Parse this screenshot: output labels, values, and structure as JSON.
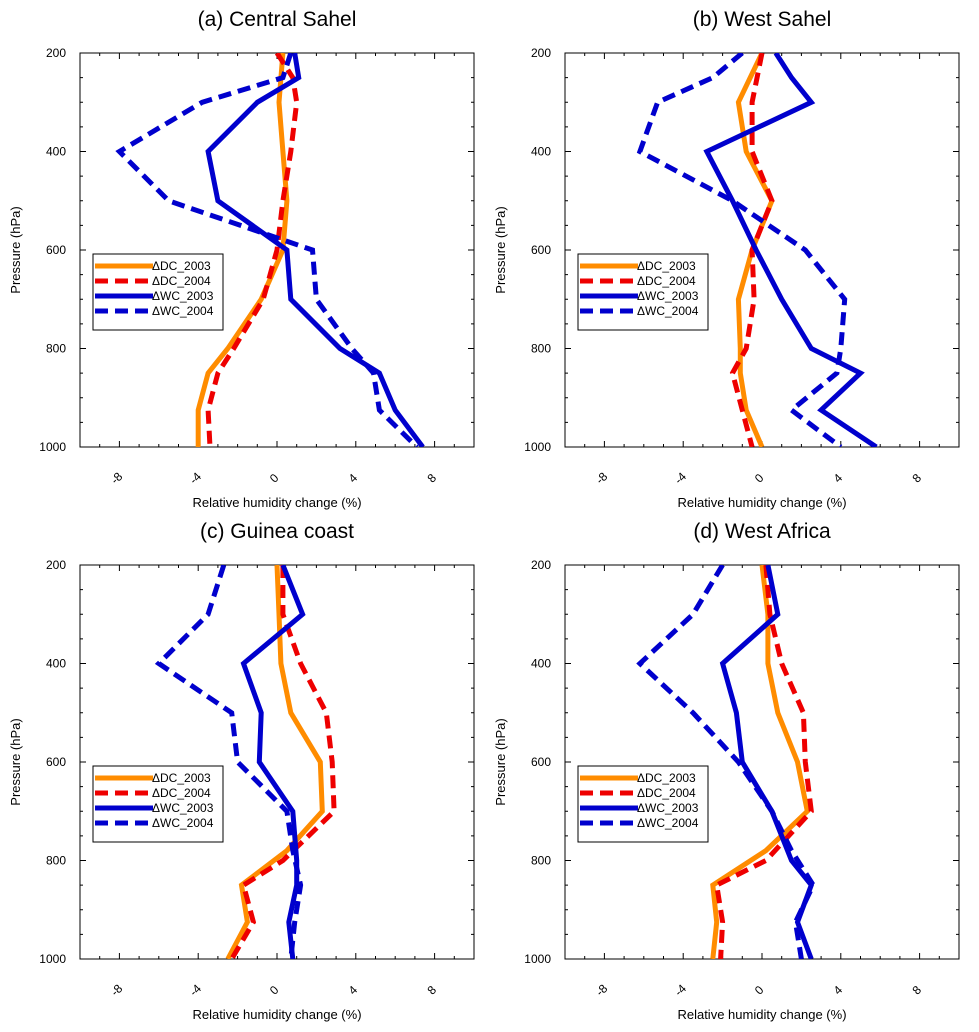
{
  "chart_data": [
    {
      "type": "line",
      "title": "(a) Central Sahel",
      "xlabel": "Relative humidity change (%)",
      "ylabel": "Pressure (hPa)",
      "xlim": [
        -10,
        10
      ],
      "ylim": [
        1000,
        200
      ],
      "x_ticks": [
        "-8",
        "-4",
        "0",
        "4",
        "8"
      ],
      "y_ticks": [
        "200",
        "400",
        "600",
        "800",
        "1000"
      ],
      "grid": false,
      "legend_position": "center-left",
      "series": [
        {
          "name": "ΔDC_2003",
          "color": "#FF8C00",
          "style": "solid",
          "points": [
            [
              0.3,
              200
            ],
            [
              0.1,
              300
            ],
            [
              0.3,
              400
            ],
            [
              0.5,
              500
            ],
            [
              0.3,
              600
            ],
            [
              -0.8,
              700
            ],
            [
              -2.5,
              800
            ],
            [
              -3.5,
              850
            ],
            [
              -4,
              925
            ],
            [
              -4,
              1000
            ]
          ]
        },
        {
          "name": "ΔDC_2004",
          "color": "#EE0000",
          "style": "dashed",
          "points": [
            [
              0,
              200
            ],
            [
              0.8,
              250
            ],
            [
              1,
              300
            ],
            [
              0.7,
              400
            ],
            [
              0.3,
              500
            ],
            [
              0,
              600
            ],
            [
              -0.7,
              700
            ],
            [
              -2.2,
              800
            ],
            [
              -3,
              850
            ],
            [
              -3.5,
              925
            ],
            [
              -3.4,
              1000
            ]
          ]
        },
        {
          "name": "ΔWC_2003",
          "color": "#0000CD",
          "style": "solid",
          "points": [
            [
              0.9,
              200
            ],
            [
              1.1,
              250
            ],
            [
              -1,
              300
            ],
            [
              -3.5,
              400
            ],
            [
              -3,
              500
            ],
            [
              0.5,
              600
            ],
            [
              0.7,
              700
            ],
            [
              3.2,
              800
            ],
            [
              5.2,
              850
            ],
            [
              6,
              925
            ],
            [
              7.4,
              1000
            ]
          ]
        },
        {
          "name": "ΔWC_2004",
          "color": "#0000CD",
          "style": "dashed",
          "points": [
            [
              0.7,
              200
            ],
            [
              0.3,
              250
            ],
            [
              -3.8,
              300
            ],
            [
              -8,
              400
            ],
            [
              -5.5,
              500
            ],
            [
              1.8,
              600
            ],
            [
              2,
              700
            ],
            [
              3.8,
              800
            ],
            [
              4.9,
              850
            ],
            [
              5.2,
              925
            ],
            [
              7.1,
              1000
            ]
          ]
        }
      ]
    },
    {
      "type": "line",
      "title": "(b) West Sahel",
      "xlabel": "Relative humidity change (%)",
      "ylabel": "Pressure (hPa)",
      "xlim": [
        -10,
        10
      ],
      "ylim": [
        1000,
        200
      ],
      "x_ticks": [
        "-8",
        "-4",
        "0",
        "4",
        "8"
      ],
      "y_ticks": [
        "200",
        "400",
        "600",
        "800",
        "1000"
      ],
      "grid": false,
      "legend_position": "center-left",
      "series": [
        {
          "name": "ΔDC_2003",
          "color": "#FF8C00",
          "style": "solid",
          "points": [
            [
              0,
              200
            ],
            [
              -1.2,
              300
            ],
            [
              -0.8,
              400
            ],
            [
              0.5,
              500
            ],
            [
              -0.5,
              600
            ],
            [
              -1.2,
              700
            ],
            [
              -1.1,
              800
            ],
            [
              -1.1,
              850
            ],
            [
              -0.8,
              925
            ],
            [
              0,
              1000
            ]
          ]
        },
        {
          "name": "ΔDC_2004",
          "color": "#EE0000",
          "style": "dashed",
          "points": [
            [
              0,
              200
            ],
            [
              -0.5,
              300
            ],
            [
              -0.5,
              400
            ],
            [
              0.5,
              500
            ],
            [
              -0.5,
              600
            ],
            [
              -0.4,
              700
            ],
            [
              -0.8,
              800
            ],
            [
              -1.5,
              850
            ],
            [
              -1,
              925
            ],
            [
              -0.5,
              1000
            ]
          ]
        },
        {
          "name": "ΔWC_2003",
          "color": "#0000CD",
          "style": "solid",
          "points": [
            [
              0.7,
              200
            ],
            [
              1.5,
              250
            ],
            [
              2.5,
              300
            ],
            [
              -2.8,
              400
            ],
            [
              -1.5,
              500
            ],
            [
              -0.3,
              600
            ],
            [
              1,
              700
            ],
            [
              2.5,
              800
            ],
            [
              5,
              850
            ],
            [
              3,
              925
            ],
            [
              5.8,
              1000
            ]
          ]
        },
        {
          "name": "ΔWC_2004",
          "color": "#0000CD",
          "style": "dashed",
          "points": [
            [
              -1,
              200
            ],
            [
              -2.5,
              250
            ],
            [
              -5.3,
              300
            ],
            [
              -6.2,
              400
            ],
            [
              -1.5,
              500
            ],
            [
              2.2,
              600
            ],
            [
              4.2,
              700
            ],
            [
              4,
              800
            ],
            [
              3.8,
              850
            ],
            [
              1.5,
              925
            ],
            [
              4,
              1000
            ]
          ]
        }
      ]
    },
    {
      "type": "line",
      "title": "(c) Guinea coast",
      "xlabel": "Relative humidity change (%)",
      "ylabel": "Pressure (hPa)",
      "xlim": [
        -10,
        10
      ],
      "ylim": [
        1000,
        200
      ],
      "x_ticks": [
        "-8",
        "-4",
        "0",
        "4",
        "8"
      ],
      "y_ticks": [
        "200",
        "400",
        "600",
        "800",
        "1000"
      ],
      "grid": false,
      "legend_position": "center-left",
      "series": [
        {
          "name": "ΔDC_2003",
          "color": "#FF8C00",
          "style": "solid",
          "points": [
            [
              0,
              200
            ],
            [
              0.1,
              300
            ],
            [
              0.2,
              400
            ],
            [
              0.7,
              500
            ],
            [
              2.2,
              600
            ],
            [
              2.3,
              700
            ],
            [
              0.5,
              780
            ],
            [
              -1.8,
              850
            ],
            [
              -1.5,
              925
            ],
            [
              -2.5,
              1000
            ]
          ]
        },
        {
          "name": "ΔDC_2004",
          "color": "#EE0000",
          "style": "dashed",
          "points": [
            [
              0.3,
              200
            ],
            [
              0.3,
              300
            ],
            [
              1.2,
              400
            ],
            [
              2.5,
              500
            ],
            [
              2.8,
              600
            ],
            [
              2.9,
              700
            ],
            [
              0.3,
              800
            ],
            [
              -1.7,
              850
            ],
            [
              -1.2,
              925
            ],
            [
              -2.3,
              1000
            ]
          ]
        },
        {
          "name": "ΔWC_2003",
          "color": "#0000CD",
          "style": "solid",
          "points": [
            [
              0.3,
              200
            ],
            [
              1.3,
              300
            ],
            [
              -1.7,
              400
            ],
            [
              -0.8,
              500
            ],
            [
              -0.9,
              600
            ],
            [
              0.8,
              700
            ],
            [
              1,
              800
            ],
            [
              1,
              850
            ],
            [
              0.6,
              925
            ],
            [
              0.8,
              1000
            ]
          ]
        },
        {
          "name": "ΔWC_2004",
          "color": "#0000CD",
          "style": "dashed",
          "points": [
            [
              -2.7,
              200
            ],
            [
              -3.5,
              300
            ],
            [
              -6,
              400
            ],
            [
              -2.3,
              500
            ],
            [
              -2,
              600
            ],
            [
              0.5,
              700
            ],
            [
              0.8,
              780
            ],
            [
              1.2,
              850
            ],
            [
              0.9,
              925
            ],
            [
              0.7,
              1000
            ]
          ]
        }
      ]
    },
    {
      "type": "line",
      "title": "(d) West Africa",
      "xlabel": "Relative humidity change (%)",
      "ylabel": "Pressure (hPa)",
      "xlim": [
        -10,
        10
      ],
      "ylim": [
        1000,
        200
      ],
      "x_ticks": [
        "-8",
        "-4",
        "0",
        "4",
        "8"
      ],
      "y_ticks": [
        "200",
        "400",
        "600",
        "800",
        "1000"
      ],
      "grid": false,
      "legend_position": "center-left",
      "series": [
        {
          "name": "ΔDC_2003",
          "color": "#FF8C00",
          "style": "solid",
          "points": [
            [
              0,
              200
            ],
            [
              0.3,
              300
            ],
            [
              0.3,
              400
            ],
            [
              0.8,
              500
            ],
            [
              1.8,
              600
            ],
            [
              2.3,
              700
            ],
            [
              0.2,
              780
            ],
            [
              -2.5,
              850
            ],
            [
              -2.3,
              925
            ],
            [
              -2.5,
              1000
            ]
          ]
        },
        {
          "name": "ΔDC_2004",
          "color": "#EE0000",
          "style": "dashed",
          "points": [
            [
              0.2,
              200
            ],
            [
              0.4,
              300
            ],
            [
              1,
              400
            ],
            [
              2.1,
              500
            ],
            [
              2.2,
              600
            ],
            [
              2.5,
              700
            ],
            [
              0.2,
              800
            ],
            [
              -2.3,
              850
            ],
            [
              -2,
              925
            ],
            [
              -2.1,
              1000
            ]
          ]
        },
        {
          "name": "ΔWC_2003",
          "color": "#0000CD",
          "style": "solid",
          "points": [
            [
              0.3,
              200
            ],
            [
              0.8,
              300
            ],
            [
              -2,
              400
            ],
            [
              -1.3,
              500
            ],
            [
              -1,
              600
            ],
            [
              0.5,
              700
            ],
            [
              1.5,
              800
            ],
            [
              2.5,
              850
            ],
            [
              1.8,
              925
            ],
            [
              2.5,
              1000
            ]
          ]
        },
        {
          "name": "ΔWC_2004",
          "color": "#0000CD",
          "style": "dashed",
          "points": [
            [
              -2,
              200
            ],
            [
              -3.5,
              300
            ],
            [
              -6.2,
              400
            ],
            [
              -3.5,
              500
            ],
            [
              -1.2,
              600
            ],
            [
              0.5,
              700
            ],
            [
              1.5,
              780
            ],
            [
              2.6,
              850
            ],
            [
              1.7,
              925
            ],
            [
              2,
              1000
            ]
          ]
        }
      ]
    }
  ]
}
